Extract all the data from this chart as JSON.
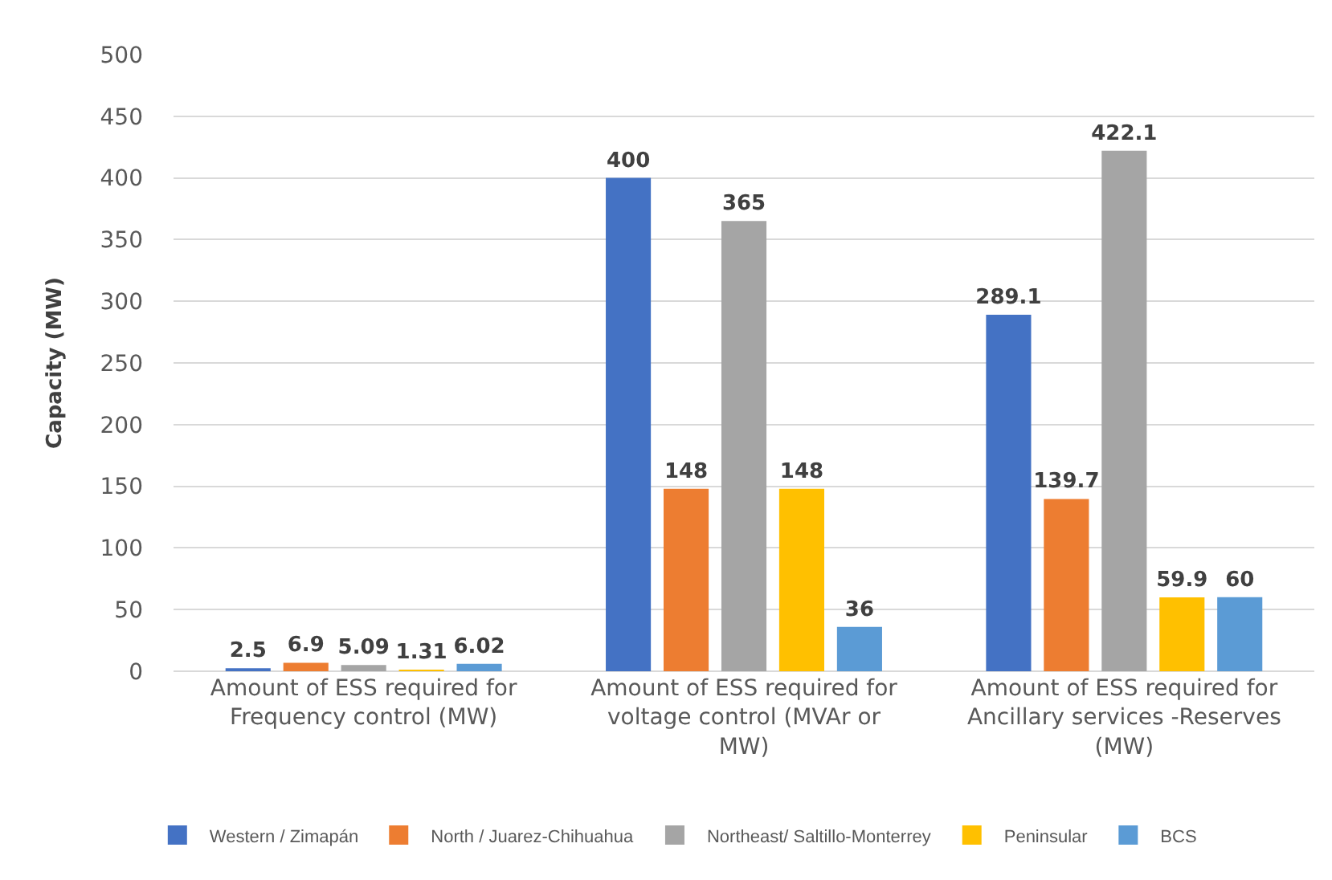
{
  "chart_data": {
    "type": "bar",
    "ylabel": "Capacity (MW)",
    "categories": [
      "Amount of ESS required for Frequency control (MW)",
      "Amount of ESS required for voltage control (MVAr or MW)",
      "Amount of ESS required for Ancillary services -Reserves (MW)"
    ],
    "series": [
      {
        "name": "Western / Zimapán",
        "color": "#4472c4",
        "values": [
          2.5,
          400,
          289.1
        ]
      },
      {
        "name": "North / Juarez-Chihuahua",
        "color": "#ed7d31",
        "values": [
          6.9,
          148,
          139.7
        ]
      },
      {
        "name": "Northeast/ Saltillo-Monterrey",
        "color": "#a5a5a5",
        "values": [
          5.09,
          365,
          422.1
        ]
      },
      {
        "name": "Peninsular",
        "color": "#ffc000",
        "values": [
          1.31,
          148,
          59.9
        ]
      },
      {
        "name": "BCS",
        "color": "#5b9bd5",
        "values": [
          6.02,
          36,
          60
        ]
      }
    ],
    "ylim": [
      0,
      500
    ],
    "yticks": [
      0,
      50,
      100,
      150,
      200,
      250,
      300,
      350,
      400,
      450,
      500
    ],
    "grid": "y",
    "legend": "bottom",
    "data_labels": true
  }
}
